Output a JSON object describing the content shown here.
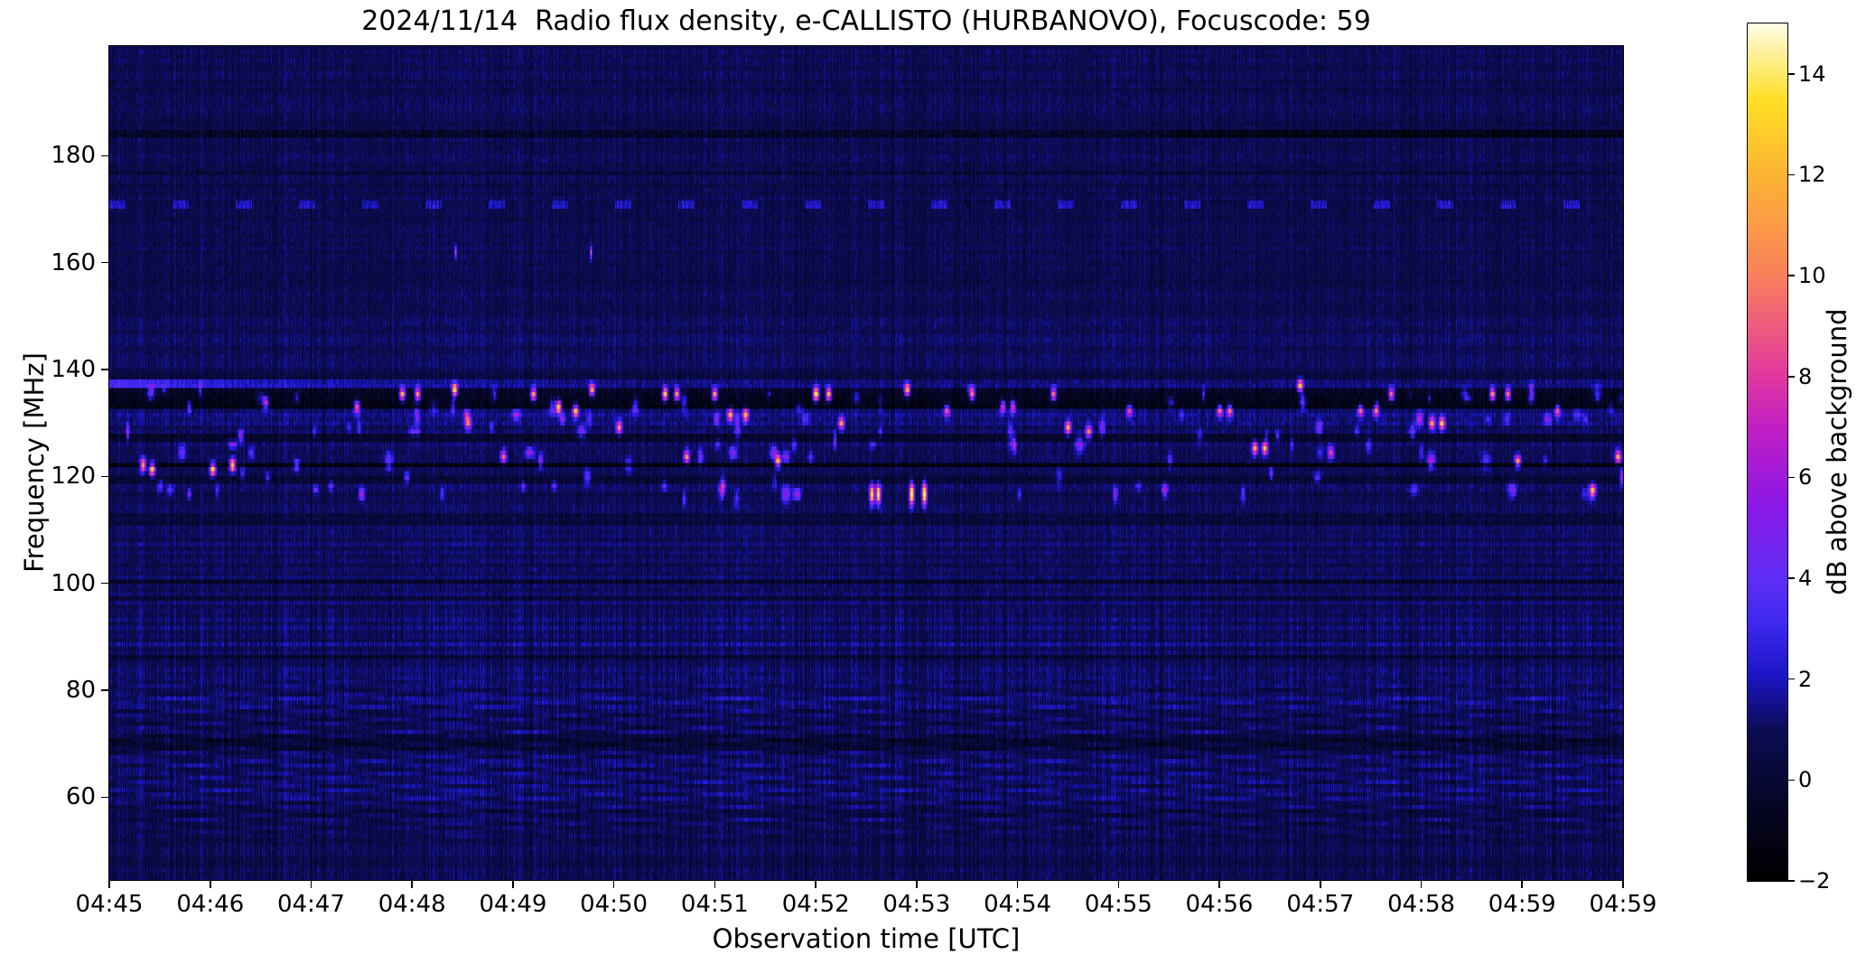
{
  "chart_data": {
    "type": "heatmap",
    "subtype": "radio-spectrogram",
    "title": "2024/11/14  Radio flux density, e-CALLISTO (HURBANOVO), Focuscode: 59",
    "date": "2024/11/14",
    "station": "HURBANOVO",
    "focuscode": "59",
    "xlabel": "Observation time [UTC]",
    "ylabel": "Frequency [MHz]",
    "colorbar_label": "dB above background",
    "time_range_utc": [
      "04:45",
      "05:00"
    ],
    "freq_range_mhz": [
      44.5,
      200.5
    ],
    "value_range_db": [
      -2,
      15
    ],
    "x_ticks": [
      {
        "label": "04:45",
        "pos": 0.0
      },
      {
        "label": "04:46",
        "pos": 0.0667
      },
      {
        "label": "04:47",
        "pos": 0.1333
      },
      {
        "label": "04:48",
        "pos": 0.2
      },
      {
        "label": "04:49",
        "pos": 0.2667
      },
      {
        "label": "04:50",
        "pos": 0.3333
      },
      {
        "label": "04:51",
        "pos": 0.4
      },
      {
        "label": "04:52",
        "pos": 0.4667
      },
      {
        "label": "04:53",
        "pos": 0.5333
      },
      {
        "label": "04:54",
        "pos": 0.6
      },
      {
        "label": "04:55",
        "pos": 0.6667
      },
      {
        "label": "04:56",
        "pos": 0.7333
      },
      {
        "label": "04:57",
        "pos": 0.8
      },
      {
        "label": "04:58",
        "pos": 0.8667
      },
      {
        "label": "04:59",
        "pos": 0.9333
      },
      {
        "label": "04:59",
        "pos": 1.0
      }
    ],
    "y_ticks": [
      {
        "label": "180",
        "freq": 180
      },
      {
        "label": "160",
        "freq": 160
      },
      {
        "label": "140",
        "freq": 140
      },
      {
        "label": "120",
        "freq": 120
      },
      {
        "label": "100",
        "freq": 100
      },
      {
        "label": "80",
        "freq": 80
      },
      {
        "label": "60",
        "freq": 60
      }
    ],
    "colorbar_ticks": [
      {
        "label": "14",
        "value": 14
      },
      {
        "label": "12",
        "value": 12
      },
      {
        "label": "10",
        "value": 10
      },
      {
        "label": "8",
        "value": 8
      },
      {
        "label": "6",
        "value": 6
      },
      {
        "label": "4",
        "value": 4
      },
      {
        "label": "2",
        "value": 2
      },
      {
        "label": "0",
        "value": 0
      },
      {
        "label": "−2",
        "value": -2
      }
    ],
    "colormap_stops": [
      [
        0.0,
        0,
        0,
        0
      ],
      [
        0.09,
        6,
        6,
        38
      ],
      [
        0.176,
        12,
        12,
        84
      ],
      [
        0.24,
        28,
        21,
        200
      ],
      [
        0.3,
        62,
        40,
        238
      ],
      [
        0.35,
        92,
        45,
        244
      ],
      [
        0.44,
        140,
        23,
        230
      ],
      [
        0.53,
        194,
        31,
        195
      ],
      [
        0.59,
        226,
        56,
        158
      ],
      [
        0.71,
        250,
        130,
        90
      ],
      [
        0.82,
        252,
        178,
        52
      ],
      [
        0.91,
        255,
        222,
        36
      ],
      [
        1.0,
        255,
        253,
        230
      ]
    ],
    "noise": {
      "seed": 20241114,
      "base": 0.95,
      "pixel": 0.85
    },
    "features": {
      "bands": [
        [
          183.2,
          185.0,
          -1.1,
          0.8
        ],
        [
          176.2,
          177.2,
          -0.45,
          0.3
        ],
        [
          170.2,
          171.6,
          -0.2,
          0.35
        ],
        [
          137.9,
          139.3,
          -0.5,
          0.3
        ],
        [
          134.3,
          136.3,
          -1.5,
          0.55
        ],
        [
          132.3,
          134.2,
          -1.85,
          0.55
        ],
        [
          129.6,
          131.8,
          0.35,
          0.3
        ],
        [
          126.6,
          128.1,
          -1.1,
          0.4
        ],
        [
          123.5,
          125.2,
          -0.3,
          0.3
        ],
        [
          121.5,
          122.7,
          -2.3,
          0.3
        ],
        [
          118.7,
          120.2,
          -0.9,
          0.35
        ],
        [
          116.2,
          117.4,
          -0.6,
          0.3
        ],
        [
          110.8,
          113.2,
          -0.55,
          0.45
        ],
        [
          100.1,
          100.9,
          -1.15,
          0.3
        ],
        [
          96.7,
          97.6,
          -0.85,
          0.3
        ],
        [
          88.1,
          89.3,
          0.55,
          0.4
        ],
        [
          85.7,
          86.9,
          -0.7,
          0.5
        ],
        [
          76.8,
          79.2,
          0.25,
          0.3
        ],
        [
          68.3,
          71.8,
          -0.8,
          0.5
        ]
      ],
      "streak": {
        "f": 137.3,
        "hw": 0.8,
        "base": 0.3,
        "amp": 2.2,
        "tau": 1.6
      },
      "dashes": {
        "f": 170.9,
        "hw": 0.75,
        "period": 70,
        "len": 18,
        "amp": 1.5
      },
      "dark_line_184_after_min": 10.5,
      "burst_rows": [
        136.2,
        135.3,
        133.6,
        131.2,
        129.3,
        128.4,
        126.4,
        124.6,
        122.9,
        120.4,
        118.6,
        117.1
      ],
      "minor_burst_count": 130,
      "bursts_major": [
        [
          0.33,
          122.5,
          12
        ],
        [
          0.42,
          121.9,
          13
        ],
        [
          1.02,
          121.9,
          13
        ],
        [
          1.22,
          122.2,
          14
        ],
        [
          1.3,
          128.2,
          6
        ],
        [
          1.55,
          134.0,
          8
        ],
        [
          1.85,
          122.3,
          5
        ],
        [
          2.45,
          133.2,
          8
        ],
        [
          2.5,
          117.0,
          6
        ],
        [
          2.9,
          136.1,
          13
        ],
        [
          3.05,
          136.0,
          12
        ],
        [
          3.42,
          136.2,
          14
        ],
        [
          3.55,
          130.3,
          7
        ],
        [
          3.9,
          124.3,
          9
        ],
        [
          4.2,
          135.6,
          12
        ],
        [
          4.45,
          133.4,
          14
        ],
        [
          4.62,
          132.8,
          12
        ],
        [
          4.78,
          136.4,
          12
        ],
        [
          5.05,
          129.6,
          10
        ],
        [
          5.5,
          136.0,
          14
        ],
        [
          5.62,
          135.8,
          12
        ],
        [
          5.72,
          124.2,
          10
        ],
        [
          6.0,
          135.9,
          12
        ],
        [
          6.15,
          132.2,
          11
        ],
        [
          6.3,
          131.8,
          11
        ],
        [
          6.62,
          123.2,
          12
        ],
        [
          7.0,
          136.0,
          15,
          2.4,
          1.1
        ],
        [
          7.12,
          136.1,
          13
        ],
        [
          7.25,
          130.0,
          10
        ],
        [
          7.55,
          117.2,
          13,
          1.8,
          1.6
        ],
        [
          7.62,
          117.0,
          14,
          1.8,
          1.6
        ],
        [
          7.9,
          136.2,
          13
        ],
        [
          7.95,
          117.1,
          15,
          1.8,
          1.8
        ],
        [
          8.07,
          117.0,
          15,
          1.8,
          1.8
        ],
        [
          8.3,
          133.0,
          8
        ],
        [
          8.55,
          135.8,
          10
        ],
        [
          8.85,
          133.3,
          9
        ],
        [
          8.95,
          133.1,
          9
        ],
        [
          9.35,
          136.0,
          11
        ],
        [
          9.5,
          129.2,
          12
        ],
        [
          9.7,
          128.8,
          7
        ],
        [
          10.1,
          132.8,
          8
        ],
        [
          10.45,
          118.0,
          6
        ],
        [
          11.0,
          132.6,
          9
        ],
        [
          11.1,
          132.4,
          9
        ],
        [
          11.35,
          125.7,
          11
        ],
        [
          11.45,
          125.5,
          12
        ],
        [
          11.8,
          137.0,
          12
        ],
        [
          12.1,
          124.8,
          8
        ],
        [
          12.4,
          132.9,
          9
        ],
        [
          12.55,
          132.6,
          8
        ],
        [
          12.7,
          136.1,
          11
        ],
        [
          13.1,
          130.6,
          11
        ],
        [
          13.2,
          130.3,
          12
        ],
        [
          13.7,
          136.1,
          12
        ],
        [
          13.85,
          135.9,
          11
        ],
        [
          13.95,
          123.1,
          11
        ],
        [
          14.35,
          132.9,
          8
        ],
        [
          14.7,
          117.6,
          10
        ],
        [
          14.95,
          124.0,
          11
        ]
      ],
      "red_dots": [
        [
          3.43,
          162.3,
          7
        ],
        [
          4.77,
          162.0,
          8
        ]
      ]
    },
    "legend": null,
    "grid": false
  }
}
